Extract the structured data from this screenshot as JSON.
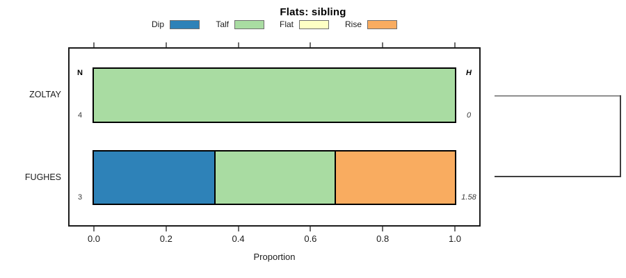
{
  "chart_data": {
    "type": "bar",
    "variant": "horizontal-stacked-proportion",
    "title": "Flats: sibling",
    "xlabel": "Proportion",
    "xlim": [
      0,
      1
    ],
    "x_ticks": [
      "0.0",
      "0.2",
      "0.4",
      "0.6",
      "0.8",
      "1.0"
    ],
    "grid": false,
    "legend_position": "top",
    "legend": [
      {
        "label": "Dip",
        "color": "#2E82B8"
      },
      {
        "label": "Talf",
        "color": "#A9DCA2"
      },
      {
        "label": "Flat",
        "color": "#FEFFC5"
      },
      {
        "label": "Rise",
        "color": "#F9AC60"
      }
    ],
    "left_column_header": "N",
    "right_column_header": "H",
    "rows": [
      {
        "label": "ZOLTAY",
        "n": "4",
        "h": "0",
        "segments": [
          {
            "category": "Talf",
            "value": 1.0
          }
        ]
      },
      {
        "label": "FUGHES",
        "n": "3",
        "h": "1.58",
        "segments": [
          {
            "category": "Dip",
            "value": 0.3333
          },
          {
            "category": "Talf",
            "value": 0.3334
          },
          {
            "category": "Rise",
            "value": 0.3333
          }
        ]
      }
    ],
    "right_annotation": "dendrogram-bracket joining ZOLTAY and FUGHES rows"
  }
}
